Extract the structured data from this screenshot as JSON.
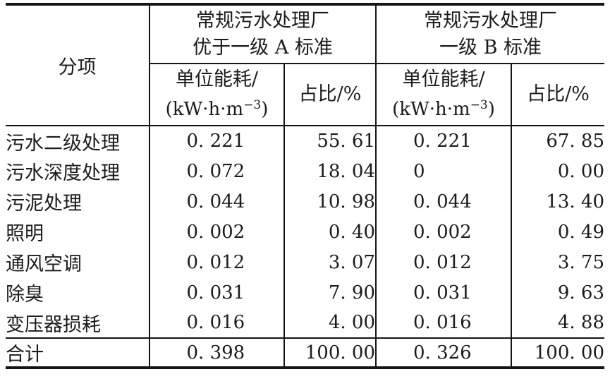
{
  "colors": {
    "background": "#ffffff",
    "text": "#1b1b1b",
    "rule": "#151515"
  },
  "table": {
    "corner_header": "分项",
    "groups": [
      {
        "line1": "常规污水处理厂",
        "line2": "优于一级 A 标准"
      },
      {
        "line1": "常规污水处理厂",
        "line2": "一级 B 标准"
      }
    ],
    "sub_headers": {
      "energy_line1": "单位能耗/",
      "energy_unit_prefix": "(kW·h·m",
      "energy_unit_sup": "−3",
      "energy_unit_suffix": ")",
      "ratio": "占比/%"
    },
    "rows": [
      {
        "label": "污水二级处理",
        "a_energy": "0. 221",
        "a_ratio": "55. 61",
        "b_energy": "0. 221",
        "b_ratio": "67. 85"
      },
      {
        "label": "污水深度处理",
        "a_energy": "0. 072",
        "a_ratio": "18. 04",
        "b_energy": "0",
        "b_ratio": "0. 00"
      },
      {
        "label": "污泥处理",
        "a_energy": "0. 044",
        "a_ratio": "10. 98",
        "b_energy": "0. 044",
        "b_ratio": "13. 40"
      },
      {
        "label": "照明",
        "a_energy": "0. 002",
        "a_ratio": "0. 40",
        "b_energy": "0. 002",
        "b_ratio": "0. 49"
      },
      {
        "label": "通风空调",
        "a_energy": "0. 012",
        "a_ratio": "3. 07",
        "b_energy": "0. 012",
        "b_ratio": "3. 75"
      },
      {
        "label": "除臭",
        "a_energy": "0. 031",
        "a_ratio": "7. 90",
        "b_energy": "0. 031",
        "b_ratio": "9. 63"
      },
      {
        "label": "变压器损耗",
        "a_energy": "0. 016",
        "a_ratio": "4. 00",
        "b_energy": "0. 016",
        "b_ratio": "4. 88"
      }
    ],
    "total_row": {
      "label": "合计",
      "a_energy": "0. 398",
      "a_ratio": "100. 00",
      "b_energy": "0. 326",
      "b_ratio": "100. 00"
    }
  }
}
